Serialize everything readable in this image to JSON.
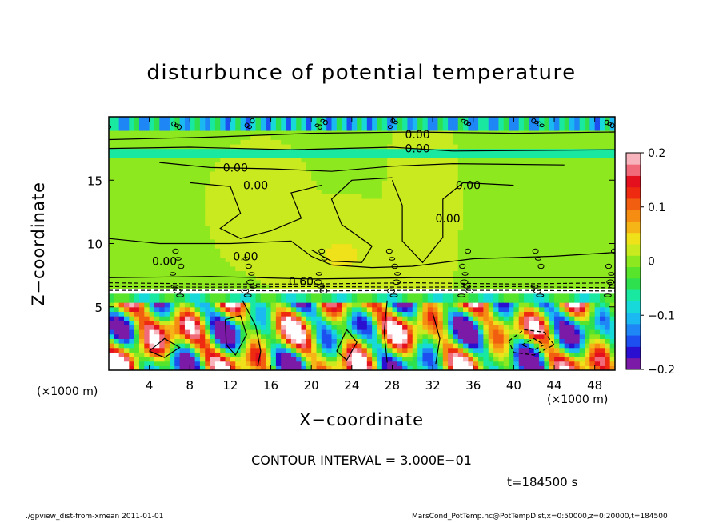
{
  "chart_data": {
    "type": "heatmap",
    "title": "disturbunce of potential temperature",
    "xlabel": "X−coordinate",
    "ylabel": "Z−coordinate",
    "x_unit_label": "(×1000 m)",
    "xlim": [
      0,
      50
    ],
    "ylim": [
      0,
      20
    ],
    "x_ticks": [
      "4",
      "8",
      "12",
      "16",
      "20",
      "24",
      "28",
      "32",
      "36",
      "40",
      "44",
      "48"
    ],
    "x_tick_values": [
      4,
      8,
      12,
      16,
      20,
      24,
      28,
      32,
      36,
      40,
      44,
      48
    ],
    "y_ticks": [
      "5",
      "10",
      "15"
    ],
    "y_tick_values": [
      5,
      10,
      15
    ],
    "colorbar": {
      "range": [
        -0.2,
        0.2
      ],
      "tick_labels": [
        "0.2",
        "0.1",
        "0",
        "−0.1",
        "−0.2"
      ],
      "tick_values": [
        0.2,
        0.1,
        0,
        -0.1,
        -0.2
      ],
      "colors": [
        "#7a1aa6",
        "#2a0fd1",
        "#1c4ef0",
        "#1f86f5",
        "#1ab9f2",
        "#18d9d9",
        "#18e8a0",
        "#2fe04e",
        "#58e42a",
        "#8ee81f",
        "#c8ea1e",
        "#f0e21a",
        "#f6b516",
        "#f58d12",
        "#f25e10",
        "#ee2a10",
        "#e5101e",
        "#f06a7a",
        "#f8b4bc"
      ]
    },
    "contour_labels": [
      {
        "text": "0.00",
        "x": 30.5,
        "z": 18.6
      },
      {
        "text": "0.00",
        "x": 30.5,
        "z": 17.5
      },
      {
        "text": "0.00",
        "x": 12.5,
        "z": 16.0
      },
      {
        "text": "0.00",
        "x": 14.5,
        "z": 14.6
      },
      {
        "text": "0.00",
        "x": 35.5,
        "z": 14.6
      },
      {
        "text": "0.00",
        "x": 33.5,
        "z": 12.0
      },
      {
        "text": "0.00",
        "x": 5.5,
        "z": 8.6
      },
      {
        "text": "0.00",
        "x": 13.5,
        "z": 9.0
      },
      {
        "text": "0.60",
        "x": 19.0,
        "z": 7.0
      }
    ],
    "annotations": [
      "CONTOUR INTERVAL = 3.000E−01",
      "t=184500 s"
    ]
  },
  "footer": {
    "left": "./gpview_dist-from-xmean   2011-01-01",
    "right": "MarsCond_PotTemp.nc@PotTempDist,x=0:50000,z=0:20000,t=184500"
  }
}
